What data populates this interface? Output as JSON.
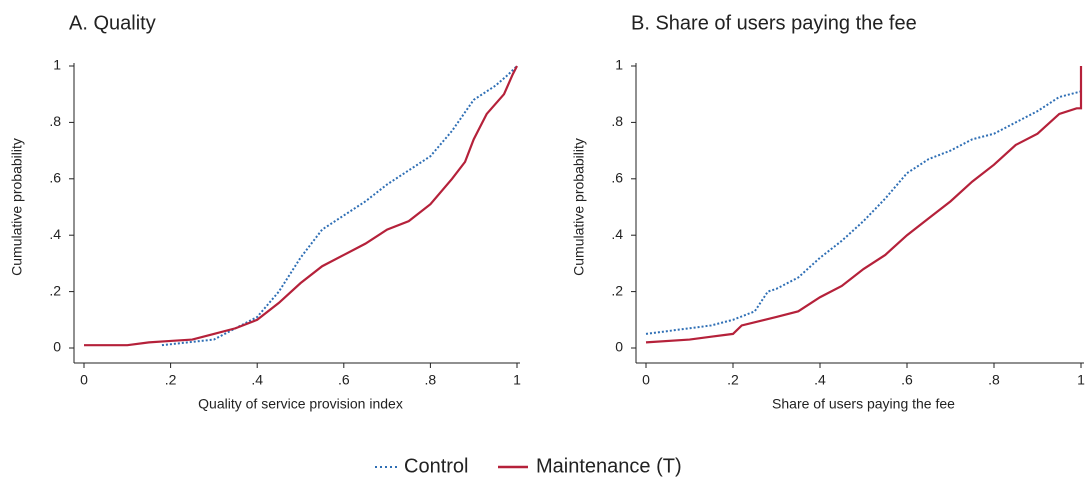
{
  "chart_data": [
    {
      "type": "line",
      "title": "A. Quality",
      "xlabel": "Quality of service provision index",
      "ylabel": "Cumulative probability",
      "xlim": [
        0,
        1
      ],
      "ylim": [
        0,
        1
      ],
      "xticks": [
        0,
        {
          "value": 0.2,
          "label": ".2"
        },
        {
          "value": 0.4,
          "label": ".4"
        },
        {
          "value": 0.6,
          "label": ".6"
        },
        {
          "value": 0.8,
          "label": ".8"
        },
        1
      ],
      "yticks": [
        0,
        {
          "value": 0.2,
          "label": ".2"
        },
        {
          "value": 0.4,
          "label": ".4"
        },
        {
          "value": 0.6,
          "label": ".6"
        },
        {
          "value": 0.8,
          "label": ".8"
        },
        1
      ],
      "series": [
        {
          "name": "Control",
          "color": "#2f6fb5",
          "dash": true,
          "x": [
            0.18,
            0.3,
            0.35,
            0.4,
            0.45,
            0.5,
            0.55,
            0.6,
            0.65,
            0.7,
            0.75,
            0.8,
            0.85,
            0.9,
            0.95,
            0.98,
            1.0
          ],
          "values": [
            0.01,
            0.03,
            0.07,
            0.11,
            0.2,
            0.32,
            0.42,
            0.47,
            0.52,
            0.58,
            0.63,
            0.68,
            0.77,
            0.88,
            0.93,
            0.97,
            1.0
          ]
        },
        {
          "name": "Maintenance (T)",
          "color": "#b5213a",
          "dash": false,
          "x": [
            0,
            0.1,
            0.15,
            0.2,
            0.25,
            0.3,
            0.35,
            0.4,
            0.45,
            0.5,
            0.55,
            0.6,
            0.65,
            0.7,
            0.75,
            0.8,
            0.85,
            0.88,
            0.9,
            0.93,
            0.97,
            0.99,
            1.0
          ],
          "values": [
            0.01,
            0.01,
            0.02,
            0.025,
            0.03,
            0.05,
            0.07,
            0.1,
            0.16,
            0.23,
            0.29,
            0.33,
            0.37,
            0.42,
            0.45,
            0.51,
            0.6,
            0.66,
            0.74,
            0.83,
            0.9,
            0.97,
            1.0
          ]
        }
      ]
    },
    {
      "type": "line",
      "title": "B. Share of users paying the fee",
      "xlabel": "Share of users paying the fee",
      "ylabel": "Cumulative probability",
      "xlim": [
        0,
        1
      ],
      "ylim": [
        0,
        1
      ],
      "xticks": [
        0,
        {
          "value": 0.2,
          "label": ".2"
        },
        {
          "value": 0.4,
          "label": ".4"
        },
        {
          "value": 0.6,
          "label": ".6"
        },
        {
          "value": 0.8,
          "label": ".8"
        },
        1
      ],
      "yticks": [
        0,
        {
          "value": 0.2,
          "label": ".2"
        },
        {
          "value": 0.4,
          "label": ".4"
        },
        {
          "value": 0.6,
          "label": ".6"
        },
        {
          "value": 0.8,
          "label": ".8"
        },
        1
      ],
      "series": [
        {
          "name": "Control",
          "color": "#2f6fb5",
          "dash": true,
          "x": [
            0,
            0.05,
            0.1,
            0.15,
            0.2,
            0.25,
            0.28,
            0.3,
            0.35,
            0.4,
            0.45,
            0.5,
            0.55,
            0.6,
            0.65,
            0.7,
            0.75,
            0.8,
            0.85,
            0.9,
            0.95,
            1.0
          ],
          "values": [
            0.05,
            0.06,
            0.07,
            0.08,
            0.1,
            0.13,
            0.2,
            0.21,
            0.25,
            0.32,
            0.38,
            0.45,
            0.53,
            0.62,
            0.67,
            0.7,
            0.74,
            0.76,
            0.8,
            0.84,
            0.89,
            0.91
          ]
        },
        {
          "name": "Maintenance (T)",
          "color": "#b5213a",
          "dash": false,
          "x": [
            0,
            0.1,
            0.15,
            0.2,
            0.22,
            0.3,
            0.35,
            0.4,
            0.45,
            0.5,
            0.55,
            0.6,
            0.65,
            0.7,
            0.75,
            0.8,
            0.85,
            0.9,
            0.95,
            0.99,
            1.0,
            1.0
          ],
          "values": [
            0.02,
            0.03,
            0.04,
            0.05,
            0.08,
            0.11,
            0.13,
            0.18,
            0.22,
            0.28,
            0.33,
            0.4,
            0.46,
            0.52,
            0.59,
            0.65,
            0.72,
            0.76,
            0.83,
            0.85,
            0.85,
            1.0
          ]
        }
      ]
    }
  ]
}
